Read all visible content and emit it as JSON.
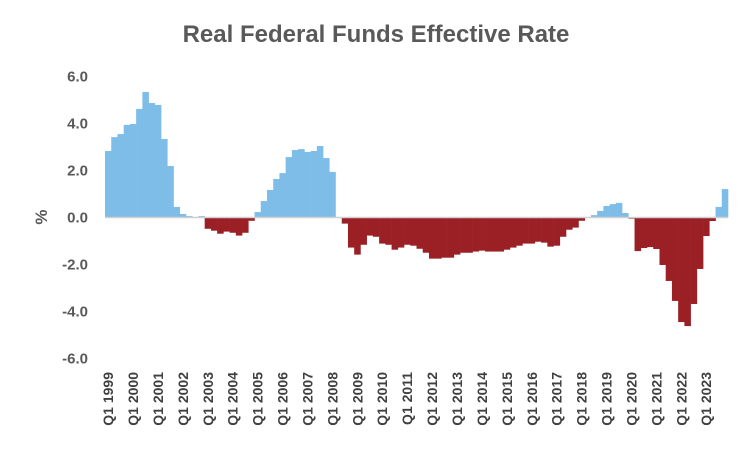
{
  "chart_data": {
    "type": "bar",
    "title": "Real Federal Funds Effective Rate",
    "xlabel": "",
    "ylabel": "%",
    "ylim": [
      -6,
      6
    ],
    "yticks": [
      6,
      4,
      2,
      0,
      -2,
      -4,
      -6
    ],
    "ytick_labels": [
      "6.0",
      "4.0",
      "2.0",
      "0.0",
      "-2.0",
      "-4.0",
      "-6.0"
    ],
    "grid": false,
    "legend": "none",
    "positive_color": "#7DBDE8",
    "negative_color": "#9B2025",
    "start_year": 1999,
    "x_tick_labels": [
      "Q1 1999",
      "Q1 2000",
      "Q1 2001",
      "Q1 2002",
      "Q1 2003",
      "Q1 2004",
      "Q1 2005",
      "Q1 2006",
      "Q1 2007",
      "Q1 2008",
      "Q1 2009",
      "Q1 2010",
      "Q1 2011",
      "Q1 2012",
      "Q1 2013",
      "Q1 2014",
      "Q1 2015",
      "Q1 2016",
      "Q1 2017",
      "Q1 2018",
      "Q1 2019",
      "Q1 2020",
      "Q1 2021",
      "Q1 2022",
      "Q1 2023"
    ],
    "values": [
      2.83,
      3.42,
      3.55,
      3.94,
      3.98,
      4.62,
      5.34,
      4.87,
      4.79,
      3.34,
      2.19,
      0.45,
      0.15,
      0.06,
      0.0,
      0.06,
      -0.48,
      -0.56,
      -0.69,
      -0.6,
      -0.65,
      -0.77,
      -0.65,
      -0.14,
      0.23,
      0.7,
      1.17,
      1.64,
      1.89,
      2.57,
      2.87,
      2.91,
      2.79,
      2.83,
      3.04,
      2.53,
      1.94,
      0.0,
      -0.26,
      -1.28,
      -1.58,
      -1.16,
      -0.77,
      -0.82,
      -1.11,
      -1.16,
      -1.37,
      -1.28,
      -1.16,
      -1.2,
      -1.33,
      -1.5,
      -1.75,
      -1.75,
      -1.71,
      -1.71,
      -1.58,
      -1.5,
      -1.5,
      -1.45,
      -1.41,
      -1.45,
      -1.45,
      -1.45,
      -1.37,
      -1.28,
      -1.2,
      -1.11,
      -1.11,
      -1.03,
      -1.07,
      -1.24,
      -1.2,
      -0.82,
      -0.52,
      -0.43,
      -0.14,
      -0.02,
      0.1,
      0.28,
      0.49,
      0.57,
      0.62,
      0.19,
      -0.05,
      -1.43,
      -1.3,
      -1.26,
      -1.34,
      -2.02,
      -2.7,
      -3.55,
      -4.45,
      -4.62,
      -3.68,
      -2.19,
      -0.79,
      -0.15,
      0.45,
      1.21
    ]
  }
}
